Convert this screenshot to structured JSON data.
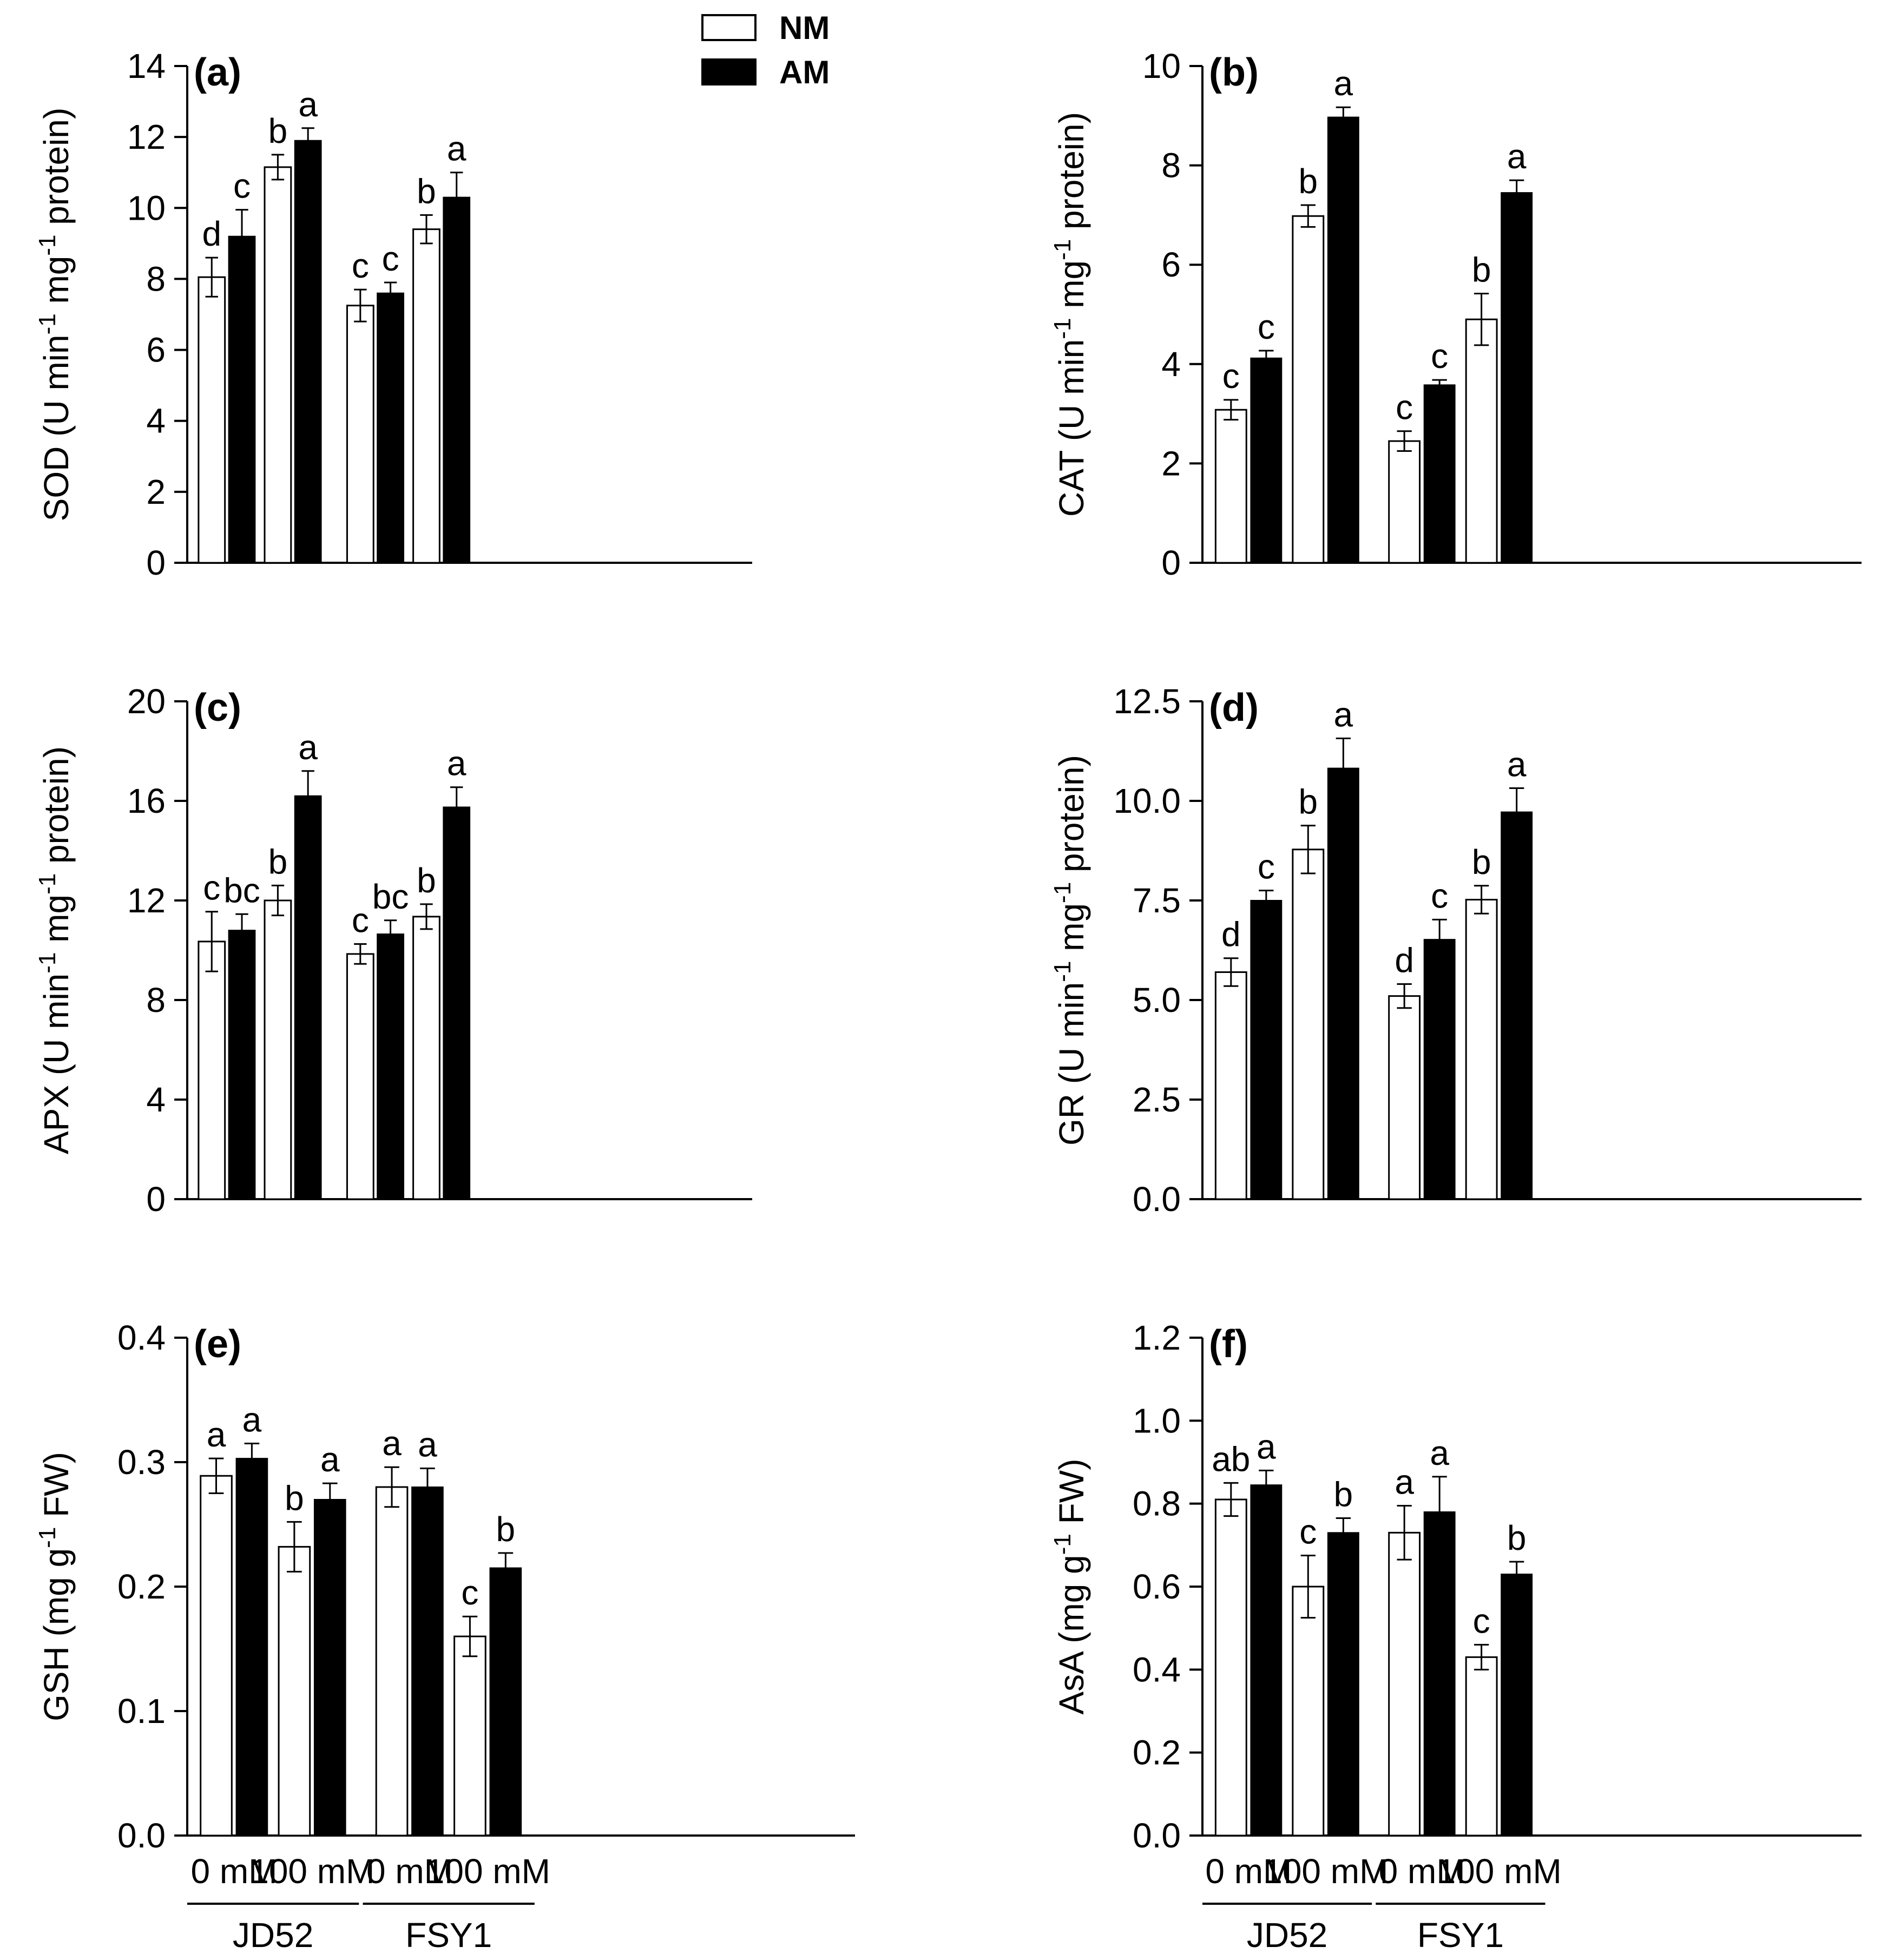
{
  "legend": {
    "series": [
      {
        "name": "NM",
        "color": "#ffffff"
      },
      {
        "name": "AM",
        "color": "#000000"
      }
    ]
  },
  "x_axis": {
    "treatments": [
      "0 mM",
      "100 mM",
      "0 mM",
      "100 mM"
    ],
    "cultivars": [
      "JD52",
      "FSY1"
    ]
  },
  "chart_data": [
    {
      "type": "bar",
      "panel": "(a)",
      "ylabel_main": "SOD (U min",
      "ylabel_sup1": "-1",
      "ylabel_mid": " mg",
      "ylabel_sup2": "-1",
      "ylabel_end": " protein)",
      "ylim": [
        0,
        14
      ],
      "yticks": [
        "0",
        "2",
        "4",
        "6",
        "8",
        "10",
        "12",
        "14"
      ],
      "categories": [
        "JD52 0 mM",
        "JD52 100 mM",
        "FSY1 0 mM",
        "FSY1 100 mM"
      ],
      "series": [
        {
          "name": "NM",
          "values": [
            8.05,
            11.15,
            7.25,
            9.4
          ],
          "errors": [
            0.55,
            0.35,
            0.45,
            0.4
          ],
          "letters": [
            "d",
            "b",
            "c",
            "b"
          ]
        },
        {
          "name": "AM",
          "values": [
            9.2,
            11.9,
            7.6,
            10.3
          ],
          "errors": [
            0.75,
            0.35,
            0.3,
            0.7
          ],
          "letters": [
            "c",
            "a",
            "c",
            "a"
          ]
        }
      ]
    },
    {
      "type": "bar",
      "panel": "(b)",
      "ylabel_main": "CAT (U min",
      "ylabel_sup1": "-1",
      "ylabel_mid": " mg",
      "ylabel_sup2": "-1",
      "ylabel_end": " protein)",
      "ylim": [
        0,
        10
      ],
      "yticks": [
        "0",
        "2",
        "4",
        "6",
        "8",
        "10"
      ],
      "categories": [
        "JD52 0 mM",
        "JD52 100 mM",
        "FSY1 0 mM",
        "FSY1 100 mM"
      ],
      "series": [
        {
          "name": "NM",
          "values": [
            3.08,
            6.98,
            2.45,
            4.9
          ],
          "errors": [
            0.2,
            0.22,
            0.2,
            0.52
          ],
          "letters": [
            "c",
            "b",
            "c",
            "b"
          ]
        },
        {
          "name": "AM",
          "values": [
            4.12,
            8.97,
            3.58,
            7.45
          ],
          "errors": [
            0.15,
            0.2,
            0.1,
            0.25
          ],
          "letters": [
            "c",
            "a",
            "c",
            "a"
          ]
        }
      ]
    },
    {
      "type": "bar",
      "panel": "(c)",
      "ylabel_main": "APX (U min",
      "ylabel_sup1": "-1",
      "ylabel_mid": " mg",
      "ylabel_sup2": "-1",
      "ylabel_end": " protein)",
      "ylim": [
        0,
        20
      ],
      "yticks": [
        "0",
        "4",
        "8",
        "12",
        "16",
        "20"
      ],
      "categories": [
        "JD52 0 mM",
        "JD52 100 mM",
        "FSY1 0 mM",
        "FSY1 100 mM"
      ],
      "series": [
        {
          "name": "NM",
          "values": [
            10.35,
            12.0,
            9.85,
            11.35
          ],
          "errors": [
            1.2,
            0.6,
            0.4,
            0.5
          ],
          "letters": [
            "c",
            "b",
            "c",
            "b"
          ]
        },
        {
          "name": "AM",
          "values": [
            10.8,
            16.2,
            10.65,
            15.75
          ],
          "errors": [
            0.65,
            1.0,
            0.55,
            0.8
          ],
          "letters": [
            "bc",
            "a",
            "bc",
            "a"
          ]
        }
      ]
    },
    {
      "type": "bar",
      "panel": "(d)",
      "ylabel_main": "GR (U min",
      "ylabel_sup1": "-1",
      "ylabel_mid": " mg",
      "ylabel_sup2": "-1",
      "ylabel_end": " protein)",
      "ylim": [
        0,
        12.5
      ],
      "yticks": [
        "0.0",
        "2.5",
        "5.0",
        "7.5",
        "10.0",
        "12.5"
      ],
      "categories": [
        "JD52 0 mM",
        "JD52 100 mM",
        "FSY1 0 mM",
        "FSY1 100 mM"
      ],
      "series": [
        {
          "name": "NM",
          "values": [
            5.7,
            8.78,
            5.1,
            7.52
          ],
          "errors": [
            0.35,
            0.6,
            0.3,
            0.35
          ],
          "letters": [
            "d",
            "b",
            "d",
            "b"
          ]
        },
        {
          "name": "AM",
          "values": [
            7.5,
            10.82,
            6.52,
            9.72
          ],
          "errors": [
            0.25,
            0.75,
            0.5,
            0.6
          ],
          "letters": [
            "c",
            "a",
            "c",
            "a"
          ]
        }
      ]
    },
    {
      "type": "bar",
      "panel": "(e)",
      "ylabel_main": "GSH (mg g",
      "ylabel_sup1": "-1",
      "ylabel_mid": " FW)",
      "ylabel_sup2": "",
      "ylabel_end": "",
      "ylim": [
        0,
        0.4
      ],
      "yticks": [
        "0.0",
        "0.1",
        "0.2",
        "0.3",
        "0.4"
      ],
      "categories": [
        "JD52 0 mM",
        "JD52 100 mM",
        "FSY1 0 mM",
        "FSY1 100 mM"
      ],
      "series": [
        {
          "name": "NM",
          "values": [
            0.289,
            0.232,
            0.28,
            0.16
          ],
          "errors": [
            0.014,
            0.02,
            0.016,
            0.016
          ],
          "letters": [
            "a",
            "b",
            "a",
            "c"
          ]
        },
        {
          "name": "AM",
          "values": [
            0.303,
            0.27,
            0.28,
            0.215
          ],
          "errors": [
            0.012,
            0.013,
            0.015,
            0.012
          ],
          "letters": [
            "a",
            "a",
            "a",
            "b"
          ]
        }
      ]
    },
    {
      "type": "bar",
      "panel": "(f)",
      "ylabel_main": "AsA (mg g",
      "ylabel_sup1": "-1",
      "ylabel_mid": " FW)",
      "ylabel_sup2": "",
      "ylabel_end": "",
      "ylim": [
        0,
        1.2
      ],
      "yticks": [
        "0.0",
        "0.2",
        "0.4",
        "0.6",
        "0.8",
        "1.0",
        "1.2"
      ],
      "categories": [
        "JD52 0 mM",
        "JD52 100 mM",
        "FSY1 0 mM",
        "FSY1 100 mM"
      ],
      "series": [
        {
          "name": "NM",
          "values": [
            0.81,
            0.6,
            0.73,
            0.43
          ],
          "errors": [
            0.04,
            0.075,
            0.065,
            0.03
          ],
          "letters": [
            "ab",
            "c",
            "a",
            "c"
          ]
        },
        {
          "name": "AM",
          "values": [
            0.845,
            0.73,
            0.78,
            0.63
          ],
          "errors": [
            0.035,
            0.035,
            0.085,
            0.03
          ],
          "letters": [
            "a",
            "b",
            "a",
            "b"
          ]
        }
      ]
    }
  ]
}
